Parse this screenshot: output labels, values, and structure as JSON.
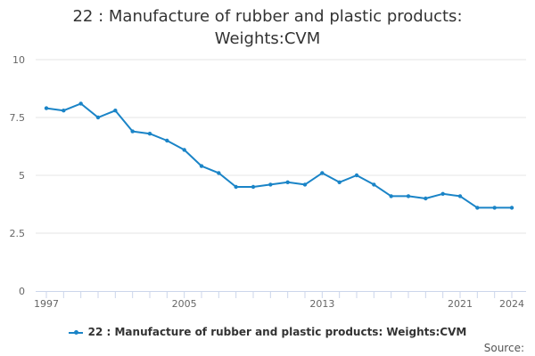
{
  "title_lines": [
    "22 : Manufacture of rubber and plastic products:",
    "Weights:CVM"
  ],
  "legend_label": "22 : Manufacture of rubber and plastic products: Weights:CVM",
  "source_label": "Source:",
  "colors": {
    "series": "#1a84c7",
    "grid": "#e6e6e6",
    "axis": "#ccd6eb",
    "text": "#666666"
  },
  "chart_data": {
    "type": "line",
    "title": "22 : Manufacture of rubber and plastic products: Weights:CVM",
    "xlabel": "",
    "ylabel": "",
    "x": [
      1997,
      1998,
      1999,
      2000,
      2001,
      2002,
      2003,
      2004,
      2005,
      2006,
      2007,
      2008,
      2009,
      2010,
      2011,
      2012,
      2013,
      2014,
      2015,
      2016,
      2017,
      2018,
      2019,
      2020,
      2021,
      2022,
      2023,
      2024
    ],
    "xticks": [
      1997,
      2005,
      2013,
      2021,
      2024
    ],
    "yticks": [
      0,
      2.5,
      5,
      7.5,
      10
    ],
    "ylim": [
      0,
      10
    ],
    "xlim": [
      1997,
      2024
    ],
    "grid": true,
    "legend": "bottom",
    "series": [
      {
        "name": "22 : Manufacture of rubber and plastic products: Weights:CVM",
        "values": [
          7.9,
          7.8,
          8.1,
          7.5,
          7.8,
          6.9,
          6.8,
          6.5,
          6.1,
          5.4,
          5.1,
          4.5,
          4.5,
          4.6,
          4.7,
          4.6,
          5.1,
          4.7,
          5.0,
          4.6,
          4.1,
          4.1,
          4.0,
          4.2,
          4.1,
          3.6,
          3.6,
          3.6
        ]
      }
    ]
  }
}
